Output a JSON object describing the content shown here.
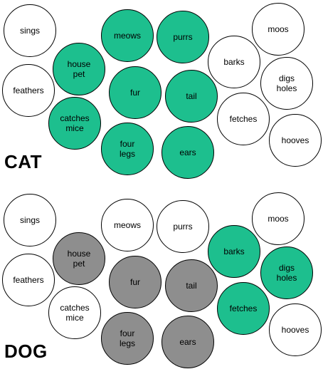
{
  "colors": {
    "teal": "#1dbf8e",
    "gray": "#8e8e8e",
    "white": "#ffffff"
  },
  "panels": [
    {
      "label": "CAT",
      "bubbles": [
        {
          "id": "sings",
          "text": "sings",
          "fill": "white"
        },
        {
          "id": "meows",
          "text": "meows",
          "fill": "teal"
        },
        {
          "id": "purrs",
          "text": "purrs",
          "fill": "teal"
        },
        {
          "id": "moos",
          "text": "moos",
          "fill": "white"
        },
        {
          "id": "house-pet",
          "text": "house\npet",
          "fill": "teal"
        },
        {
          "id": "barks",
          "text": "barks",
          "fill": "white"
        },
        {
          "id": "feathers",
          "text": "feathers",
          "fill": "white"
        },
        {
          "id": "fur",
          "text": "fur",
          "fill": "teal"
        },
        {
          "id": "tail",
          "text": "tail",
          "fill": "teal"
        },
        {
          "id": "digs-holes",
          "text": "digs\nholes",
          "fill": "white"
        },
        {
          "id": "catches-mice",
          "text": "catches\nmice",
          "fill": "teal"
        },
        {
          "id": "fetches",
          "text": "fetches",
          "fill": "white"
        },
        {
          "id": "four-legs",
          "text": "four\nlegs",
          "fill": "teal"
        },
        {
          "id": "ears",
          "text": "ears",
          "fill": "teal"
        },
        {
          "id": "hooves",
          "text": "hooves",
          "fill": "white"
        }
      ]
    },
    {
      "label": "DOG",
      "bubbles": [
        {
          "id": "sings",
          "text": "sings",
          "fill": "white"
        },
        {
          "id": "meows",
          "text": "meows",
          "fill": "white"
        },
        {
          "id": "purrs",
          "text": "purrs",
          "fill": "white"
        },
        {
          "id": "moos",
          "text": "moos",
          "fill": "white"
        },
        {
          "id": "house-pet",
          "text": "house\npet",
          "fill": "gray"
        },
        {
          "id": "barks",
          "text": "barks",
          "fill": "teal"
        },
        {
          "id": "feathers",
          "text": "feathers",
          "fill": "white"
        },
        {
          "id": "fur",
          "text": "fur",
          "fill": "gray"
        },
        {
          "id": "tail",
          "text": "tail",
          "fill": "gray"
        },
        {
          "id": "digs-holes",
          "text": "digs\nholes",
          "fill": "teal"
        },
        {
          "id": "catches-mice",
          "text": "catches\nmice",
          "fill": "white"
        },
        {
          "id": "fetches",
          "text": "fetches",
          "fill": "teal"
        },
        {
          "id": "four-legs",
          "text": "four\nlegs",
          "fill": "gray"
        },
        {
          "id": "ears",
          "text": "ears",
          "fill": "gray"
        },
        {
          "id": "hooves",
          "text": "hooves",
          "fill": "white"
        }
      ]
    }
  ]
}
